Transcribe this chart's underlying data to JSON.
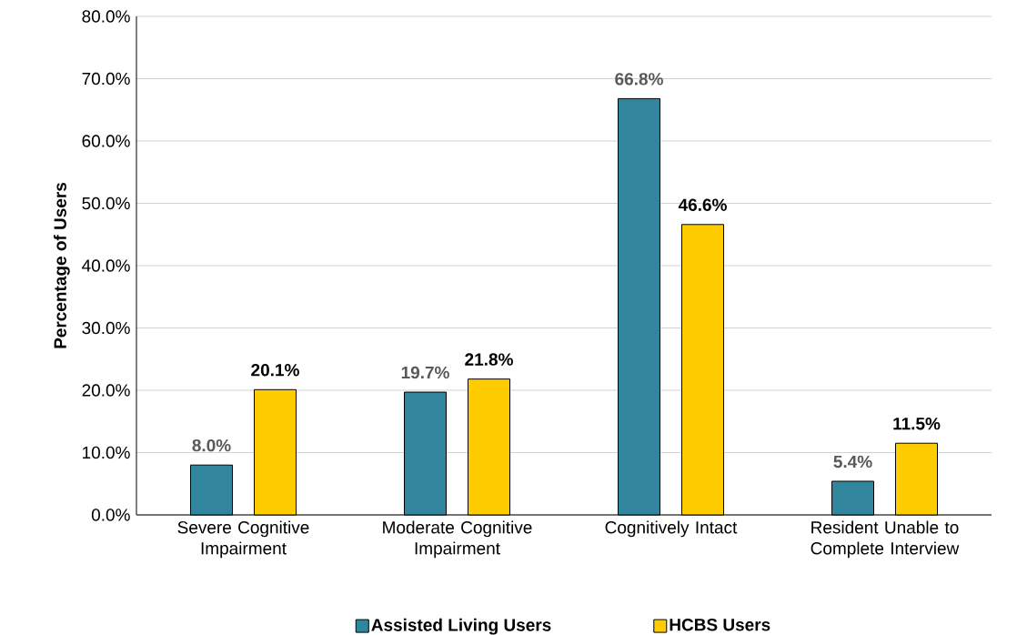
{
  "chart_data": {
    "type": "bar",
    "ylabel": "Percentage of Users",
    "categories": [
      "Severe Cognitive Impairment",
      "Moderate Cognitive Impairment",
      "Cognitively Intact",
      "Resident Unable to Complete Interview"
    ],
    "series": [
      {
        "name": "Assisted Living Users",
        "color": "#31859c",
        "values": [
          8.0,
          19.7,
          66.8,
          5.4
        ],
        "value_labels": [
          "8.0%",
          "19.7%",
          "66.8%",
          "5.4%"
        ]
      },
      {
        "name": "HCBS Users",
        "color": "#ffcc00",
        "values": [
          20.1,
          21.8,
          46.6,
          11.5
        ],
        "value_labels": [
          "20.1%",
          "21.8%",
          "46.6%",
          "11.5%"
        ]
      }
    ],
    "ylim": [
      0,
      80
    ],
    "yticks": [
      {
        "value": 0,
        "label": "0.0%"
      },
      {
        "value": 10,
        "label": "10.0%"
      },
      {
        "value": 20,
        "label": "20.0%"
      },
      {
        "value": 30,
        "label": "30.0%"
      },
      {
        "value": 40,
        "label": "40.0%"
      },
      {
        "value": 50,
        "label": "50.0%"
      },
      {
        "value": 60,
        "label": "60.0%"
      },
      {
        "value": 70,
        "label": "70.0%"
      },
      {
        "value": 80,
        "label": "80.0%"
      }
    ],
    "grid": "y",
    "legend": "bottom"
  }
}
